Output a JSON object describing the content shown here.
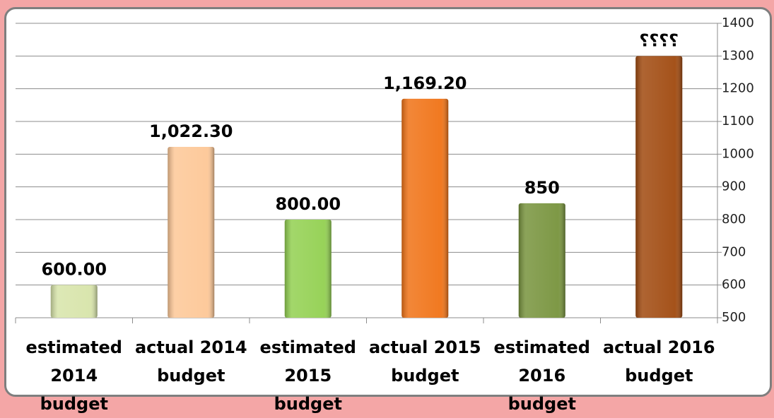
{
  "chart_data": {
    "type": "bar",
    "categories": [
      "estimated 2014 budget",
      "actual 2014 budget",
      "estimated 2015 budget",
      "actual 2015 budget",
      "estimated 2016 budget",
      "actual 2016 budget"
    ],
    "values": [
      600,
      1022.3,
      800,
      1169.2,
      850,
      1300
    ],
    "value_labels": [
      "600.00",
      "1,022.30",
      "800.00",
      "1,169.20",
      "850",
      "؟؟؟؟"
    ],
    "colors": [
      "#d7e4a9",
      "#fdc796",
      "#92d050",
      "#f07215",
      "#77933c",
      "#a0490e"
    ],
    "ylim": [
      500,
      1400
    ],
    "yticks": [
      500,
      600,
      700,
      800,
      900,
      1000,
      1100,
      1200,
      1300,
      1400
    ],
    "grid": true
  }
}
